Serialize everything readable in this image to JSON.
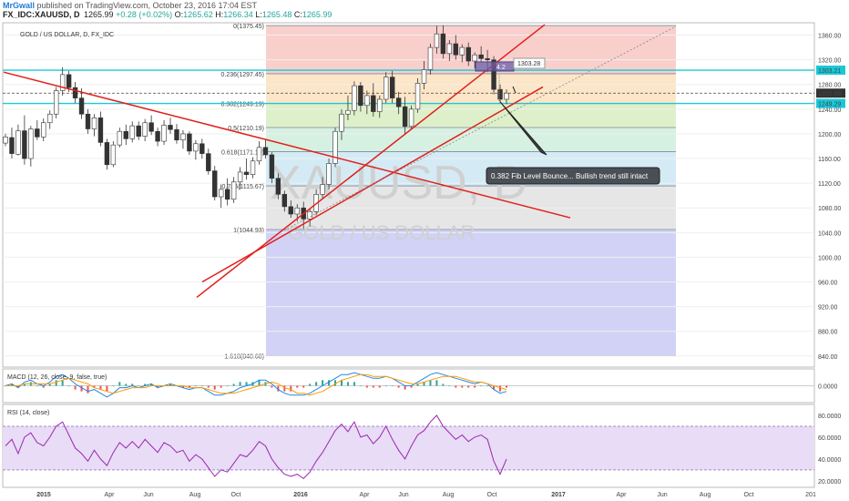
{
  "header": {
    "author": "MrGwall",
    "published": "published on TradingView.com, October 23, 2016 17:04 EST",
    "symbol": "FX_IDC:XAUUSD, D",
    "last": "1265.99",
    "change": "+0.28 (+0.02%)",
    "ohlc_o_label": "O:",
    "ohlc_o": "1265.62",
    "ohlc_h_label": "H:",
    "ohlc_h": "1266.34",
    "ohlc_l_label": "L:",
    "ohlc_l": "1265.48",
    "ohlc_c_label": "C:",
    "ohlc_c": "1265.99"
  },
  "colors": {
    "up": "#26a69a",
    "down": "#ef5350",
    "candle": "#333333",
    "trend": "#e0201b",
    "hline": "#19c8d8",
    "macd": "#1e88e5",
    "signal": "#ff9800",
    "rsi": "#9c27b0",
    "author": "#1e7bd6"
  },
  "chart_data": [
    {
      "type": "candlestick",
      "title": "GOLD / US DOLLAR, D, FX_IDC",
      "watermark": "XAUUSD, D",
      "watermark_sub": "GOLD / US DOLLAR",
      "ylim": [
        822,
        1380
      ],
      "y_ticks": [
        "1360.00",
        "1320.00",
        "1280.00",
        "1240.00",
        "1200.00",
        "1160.00",
        "1120.00",
        "1080.00",
        "1040.00",
        "1000.00",
        "960.00",
        "920.00",
        "880.00",
        "840.00"
      ],
      "x_ticks": [
        "2015",
        "Apr",
        "Jun",
        "Aug",
        "Oct",
        "2016",
        "Apr",
        "Jun",
        "Aug",
        "Oct",
        "2017",
        "Apr",
        "Jun",
        "Aug",
        "Oct",
        "201"
      ],
      "price_tags": [
        "1303.21",
        "1265.99",
        "1249.29"
      ],
      "fib_levels": [
        {
          "ratio": "0",
          "price": 1375.45,
          "label": "0(1375.45)",
          "fill": "#f8c7c3"
        },
        {
          "ratio": "0.236",
          "price": 1297.45,
          "label": "0.236(1297.45)",
          "fill": "#fbe2bd"
        },
        {
          "ratio": "0.382",
          "price": 1249.19,
          "label": "0.382(1249.19)",
          "fill": "#d7edbf"
        },
        {
          "ratio": "0.5",
          "price": 1210.19,
          "label": "0.5(1210.19)",
          "fill": "#cfeedd"
        },
        {
          "ratio": "0.618",
          "price": 1171.19,
          "label": "0.618(1171.19)",
          "fill": "#cde8f3"
        },
        {
          "ratio": "0.786",
          "price": 1115.67,
          "label": "0.786(1115.67)",
          "fill": "#e2e2e2"
        },
        {
          "ratio": "1",
          "price": 1044.93,
          "label": "1(1044.93)",
          "fill": "#c9caf4"
        },
        {
          "ratio": "1.618",
          "price": 840.68,
          "label": "1.618(840.68)",
          "fill": ""
        }
      ],
      "horizontal_levels": [
        1303.21,
        1249.29
      ],
      "current_price": 1265.99,
      "annotation": "0.382 Fib Level Bounce... Bullish trend still intact",
      "measure_label": "1303.28",
      "measure_label_2": "4.2",
      "series": [
        {
          "values": [
            [
              1185,
              1200,
              1180,
              1195
            ],
            [
              1194,
              1210,
              1160,
              1168
            ],
            [
              1167,
              1215,
              1165,
              1205
            ],
            [
              1205,
              1230,
              1150,
              1160
            ],
            [
              1160,
              1213,
              1147,
              1208
            ],
            [
              1208,
              1222,
              1190,
              1195
            ],
            [
              1195,
              1225,
              1188,
              1218
            ],
            [
              1218,
              1238,
              1208,
              1232
            ],
            [
              1232,
              1276,
              1225,
              1270
            ],
            [
              1270,
              1308,
              1262,
              1296
            ],
            [
              1296,
              1302,
              1268,
              1275
            ],
            [
              1275,
              1284,
              1250,
              1258
            ],
            [
              1258,
              1274,
              1224,
              1232
            ],
            [
              1232,
              1240,
              1200,
              1208
            ],
            [
              1208,
              1232,
              1196,
              1226
            ],
            [
              1226,
              1236,
              1180,
              1186
            ],
            [
              1186,
              1192,
              1142,
              1150
            ],
            [
              1150,
              1188,
              1146,
              1182
            ],
            [
              1182,
              1210,
              1178,
              1204
            ],
            [
              1204,
              1215,
              1182,
              1192
            ],
            [
              1192,
              1220,
              1186,
              1213
            ],
            [
              1213,
              1220,
              1190,
              1196
            ],
            [
              1196,
              1224,
              1188,
              1218
            ],
            [
              1218,
              1230,
              1198,
              1204
            ],
            [
              1204,
              1210,
              1180,
              1188
            ],
            [
              1188,
              1222,
              1182,
              1214
            ],
            [
              1214,
              1226,
              1200,
              1207
            ],
            [
              1207,
              1216,
              1184,
              1190
            ],
            [
              1190,
              1206,
              1176,
              1200
            ],
            [
              1200,
              1204,
              1166,
              1172
            ],
            [
              1172,
              1190,
              1158,
              1184
            ],
            [
              1184,
              1192,
              1160,
              1168
            ],
            [
              1168,
              1176,
              1134,
              1140
            ],
            [
              1140,
              1148,
              1092,
              1098
            ],
            [
              1098,
              1118,
              1080,
              1110
            ],
            [
              1110,
              1128,
              1084,
              1094
            ],
            [
              1094,
              1130,
              1088,
              1122
            ],
            [
              1122,
              1146,
              1110,
              1138
            ],
            [
              1138,
              1160,
              1126,
              1134
            ],
            [
              1134,
              1162,
              1128,
              1156
            ],
            [
              1156,
              1188,
              1150,
              1178
            ],
            [
              1178,
              1192,
              1160,
              1166
            ],
            [
              1166,
              1170,
              1120,
              1128
            ],
            [
              1128,
              1136,
              1094,
              1102
            ],
            [
              1102,
              1108,
              1074,
              1082
            ],
            [
              1082,
              1092,
              1064,
              1070
            ],
            [
              1070,
              1086,
              1058,
              1080
            ],
            [
              1080,
              1090,
              1046,
              1062
            ],
            [
              1062,
              1078,
              1050,
              1074
            ],
            [
              1074,
              1110,
              1068,
              1102
            ],
            [
              1102,
              1130,
              1094,
              1118
            ],
            [
              1118,
              1160,
              1110,
              1152
            ],
            [
              1152,
              1210,
              1146,
              1204
            ],
            [
              1204,
              1240,
              1190,
              1232
            ],
            [
              1232,
              1262,
              1222,
              1238
            ],
            [
              1238,
              1285,
              1230,
              1278
            ],
            [
              1278,
              1284,
              1236,
              1246
            ],
            [
              1246,
              1270,
              1232,
              1262
            ],
            [
              1262,
              1282,
              1228,
              1236
            ],
            [
              1236,
              1262,
              1226,
              1256
            ],
            [
              1256,
              1300,
              1250,
              1292
            ],
            [
              1292,
              1302,
              1250,
              1258
            ],
            [
              1258,
              1268,
              1232,
              1244
            ],
            [
              1244,
              1260,
              1200,
              1212
            ],
            [
              1212,
              1246,
              1208,
              1240
            ],
            [
              1240,
              1290,
              1234,
              1282
            ],
            [
              1282,
              1318,
              1272,
              1304
            ],
            [
              1304,
              1346,
              1296,
              1340
            ],
            [
              1340,
              1375,
              1330,
              1362
            ],
            [
              1362,
              1376,
              1322,
              1330
            ],
            [
              1330,
              1352,
              1318,
              1346
            ],
            [
              1346,
              1360,
              1320,
              1328
            ],
            [
              1328,
              1345,
              1316,
              1340
            ],
            [
              1340,
              1348,
              1310,
              1318
            ],
            [
              1318,
              1332,
              1306,
              1328
            ],
            [
              1328,
              1342,
              1316,
              1322
            ],
            [
              1322,
              1336,
              1300,
              1320
            ],
            [
              1320,
              1326,
              1264,
              1272
            ],
            [
              1272,
              1280,
              1250,
              1256
            ],
            [
              1256,
              1272,
              1248,
              1266
            ]
          ]
        }
      ]
    },
    {
      "type": "line",
      "title": "MACD (12, 26, close, 9, false, true)",
      "ylim": [
        -9,
        9
      ],
      "y_ticks": [
        "0.0000"
      ],
      "series": [
        {
          "name": "MACD",
          "values": [
            0,
            1,
            -1,
            2,
            3,
            1,
            0,
            2,
            5,
            6,
            4,
            1,
            -1,
            -3,
            -2,
            -4,
            -6,
            -4,
            -1,
            -1,
            0,
            -1,
            0,
            1,
            -1,
            0,
            1,
            0,
            -1,
            -2,
            -1,
            -1,
            -3,
            -5,
            -5,
            -4,
            -3,
            -1,
            0,
            1,
            3,
            3,
            1,
            -2,
            -4,
            -5,
            -5,
            -5,
            -4,
            -2,
            0,
            2,
            4,
            6,
            6,
            7,
            6,
            5,
            4,
            4,
            5,
            4,
            2,
            0,
            0,
            2,
            4,
            6,
            7,
            6,
            5,
            4,
            3,
            2,
            1,
            2,
            1,
            -2,
            -4,
            -3
          ]
        },
        {
          "name": "Signal",
          "values": [
            0,
            0,
            0,
            1,
            1,
            1,
            1,
            1,
            2,
            3,
            4,
            3,
            2,
            1,
            -1,
            -2,
            -3,
            -4,
            -3,
            -2,
            -1,
            -1,
            -1,
            0,
            0,
            0,
            0,
            0,
            0,
            -1,
            -1,
            -1,
            -2,
            -3,
            -4,
            -4,
            -4,
            -3,
            -2,
            -1,
            0,
            1,
            2,
            1,
            -1,
            -2,
            -4,
            -4,
            -5,
            -4,
            -3,
            -1,
            1,
            3,
            4,
            5,
            6,
            6,
            5,
            5,
            5,
            4,
            3,
            2,
            1,
            1,
            2,
            3,
            4,
            5,
            5,
            5,
            4,
            3,
            2,
            2,
            1,
            0,
            -1,
            -2
          ]
        }
      ]
    },
    {
      "type": "line",
      "title": "RSI (14, close)",
      "ylim": [
        14,
        90
      ],
      "y_ticks": [
        "80.0000",
        "60.0000",
        "40.0000",
        "20.0000"
      ],
      "band": [
        30,
        70
      ],
      "series": [
        {
          "name": "RSI",
          "values": [
            52,
            58,
            45,
            60,
            64,
            55,
            52,
            60,
            70,
            74,
            62,
            50,
            45,
            38,
            48,
            40,
            34,
            46,
            55,
            50,
            56,
            50,
            58,
            52,
            46,
            55,
            52,
            46,
            48,
            38,
            44,
            40,
            32,
            24,
            30,
            28,
            36,
            44,
            42,
            48,
            56,
            52,
            40,
            32,
            26,
            24,
            26,
            22,
            28,
            38,
            46,
            56,
            66,
            72,
            65,
            74,
            60,
            62,
            54,
            60,
            70,
            58,
            48,
            40,
            52,
            62,
            66,
            74,
            80,
            70,
            64,
            58,
            62,
            56,
            60,
            62,
            58,
            38,
            26,
            40
          ]
        }
      ]
    }
  ]
}
